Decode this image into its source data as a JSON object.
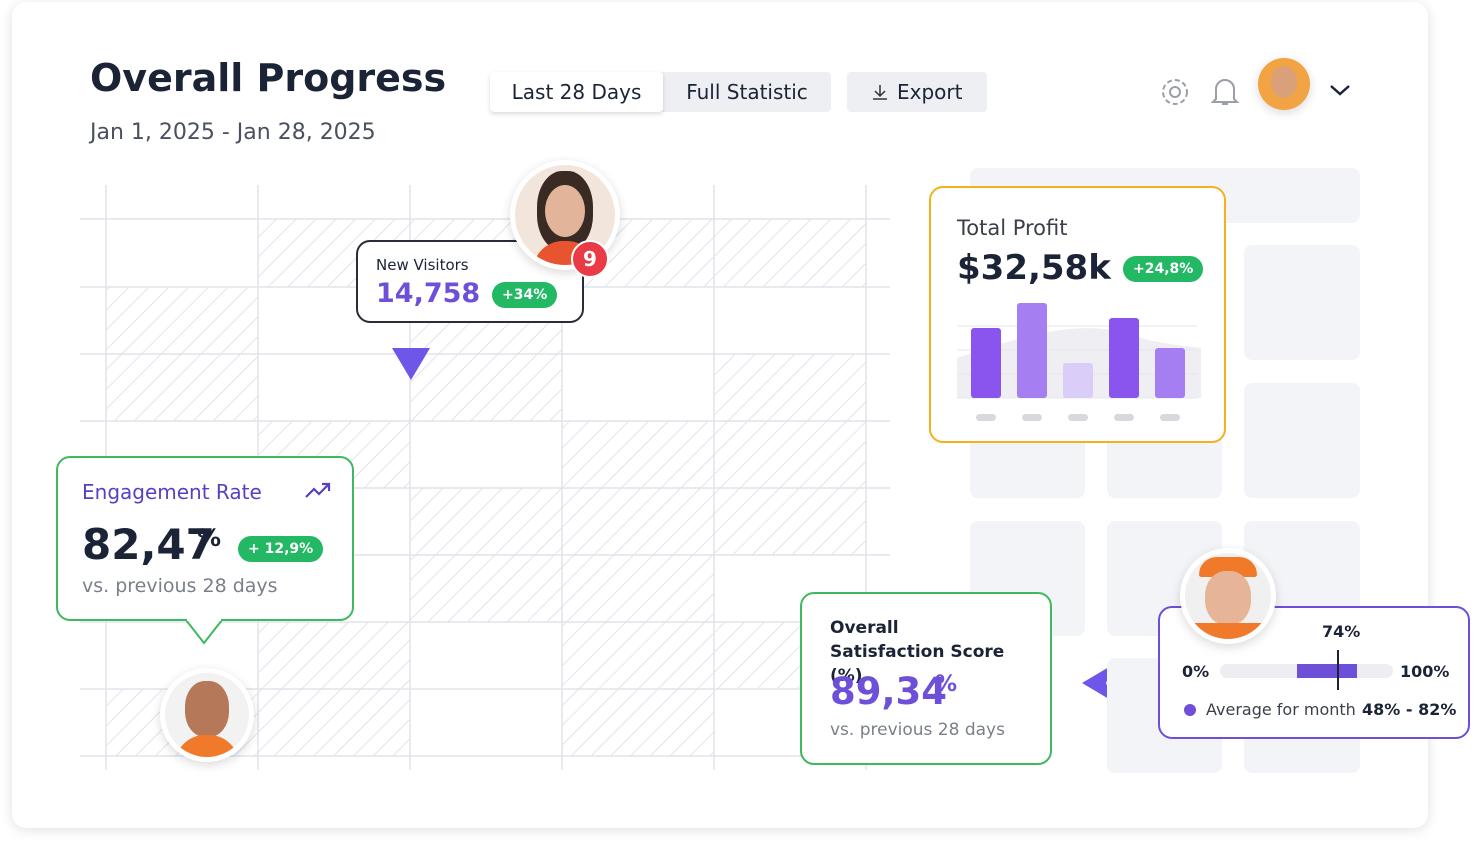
{
  "header": {
    "title": "Overall Progress",
    "date_range": "Jan 1, 2025 - Jan 28, 2025",
    "tabs": [
      "Last 28 Days",
      "Full Statistic"
    ],
    "export": "Export"
  },
  "new_visitors": {
    "label": "New Visitors",
    "value": "14,758",
    "change": "+34%",
    "badge": "9"
  },
  "engagement": {
    "label": "Engagement Rate",
    "value": "82,47",
    "unit": "%",
    "change": "+ 12,9%",
    "note": "vs. previous 28 days"
  },
  "profit": {
    "label": "Total Profit",
    "value": "$32,58k",
    "change": "+24,8%"
  },
  "satisfaction": {
    "label": "Overall Satisfaction Score (%)",
    "value": "89,34",
    "unit": "%",
    "note": "vs. previous 28 days"
  },
  "range": {
    "current": "74%",
    "min": "0%",
    "max": "100%",
    "legend": "Average for month",
    "avg": "48% - 82%"
  }
}
